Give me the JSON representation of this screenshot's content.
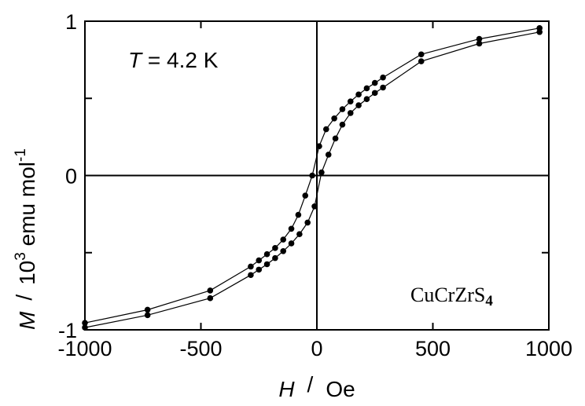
{
  "chart_data": {
    "type": "scatter",
    "title": "",
    "annotations": {
      "temperature": {
        "symbol": "T",
        "text": " = 4.2 K"
      },
      "compound": {
        "base": "CuCrZrS",
        "subscript": "4"
      }
    },
    "xlabel": {
      "symbol": "H",
      "separator": "/",
      "unit": "Oe"
    },
    "ylabel": {
      "symbol": "M",
      "separator": "/",
      "unit_prefix": "10",
      "unit_exp": "3",
      "unit_mid": " emu mol",
      "unit_sup": "-1"
    },
    "xlim": [
      -1000,
      1000
    ],
    "ylim": [
      -1,
      1
    ],
    "xticks": [
      -1000,
      -500,
      0,
      500,
      1000
    ],
    "xtick_labels": [
      "-1000",
      "-500",
      "0",
      "500",
      "1000"
    ],
    "yticks": [
      -1,
      0,
      1
    ],
    "ytick_labels": [
      "-1",
      "0",
      "1"
    ],
    "grid": false,
    "zero_lines": true,
    "series": [
      {
        "x": [
          960,
          700,
          450,
          285,
          250,
          215,
          180,
          145,
          110,
          75,
          40,
          10,
          -20,
          -50,
          -80,
          -110,
          -145,
          -180,
          -215,
          -250,
          -285,
          -460,
          -730,
          -1000
        ],
        "y": [
          0.955,
          0.885,
          0.785,
          0.635,
          0.6,
          0.565,
          0.525,
          0.48,
          0.43,
          0.37,
          0.3,
          0.19,
          0.0,
          -0.13,
          -0.255,
          -0.345,
          -0.415,
          -0.47,
          -0.51,
          -0.55,
          -0.59,
          -0.745,
          -0.87,
          -0.955
        ]
      },
      {
        "x": [
          -1000,
          -730,
          -460,
          -285,
          -250,
          -215,
          -180,
          -145,
          -110,
          -75,
          -40,
          -10,
          20,
          50,
          80,
          110,
          145,
          180,
          215,
          250,
          285,
          450,
          700,
          960
        ],
        "y": [
          -0.985,
          -0.905,
          -0.795,
          -0.645,
          -0.61,
          -0.575,
          -0.535,
          -0.49,
          -0.44,
          -0.38,
          -0.305,
          -0.2,
          0.02,
          0.135,
          0.24,
          0.33,
          0.405,
          0.455,
          0.495,
          0.535,
          0.57,
          0.74,
          0.855,
          0.93
        ]
      }
    ]
  }
}
